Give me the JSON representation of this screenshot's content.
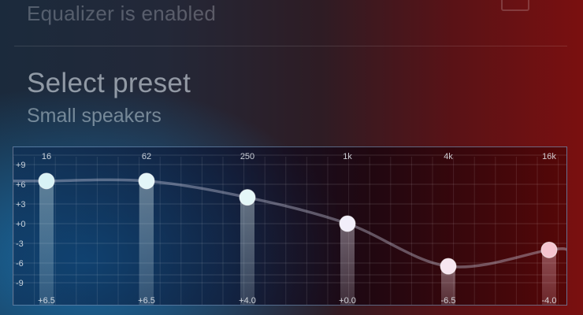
{
  "equalizer": {
    "status_text": "Equalizer is enabled"
  },
  "preset": {
    "title": "Select preset",
    "value": "Small speakers"
  },
  "eq": {
    "y_ticks": [
      "+9",
      "+6",
      "+3",
      "+0",
      "-3",
      "-6",
      "-9"
    ],
    "y_tick_values": [
      9,
      6,
      3,
      0,
      -3,
      -6,
      -9
    ],
    "y_range": [
      -12,
      12
    ],
    "bands": [
      {
        "freq": "16",
        "gain": 6.5,
        "label": "+6.5",
        "color": "#d8f3f6"
      },
      {
        "freq": "62",
        "gain": 6.5,
        "label": "+6.5",
        "color": "#e3f6f8"
      },
      {
        "freq": "250",
        "gain": 4.0,
        "label": "+4.0",
        "color": "#e4f7f8"
      },
      {
        "freq": "1k",
        "gain": 0.0,
        "label": "+0.0",
        "color": "#f2eefa"
      },
      {
        "freq": "4k",
        "gain": -6.5,
        "label": "-6.5",
        "color": "#f7e6f0"
      },
      {
        "freq": "16k",
        "gain": -4.0,
        "label": "-4.0",
        "color": "#f5c4cf"
      }
    ]
  }
}
